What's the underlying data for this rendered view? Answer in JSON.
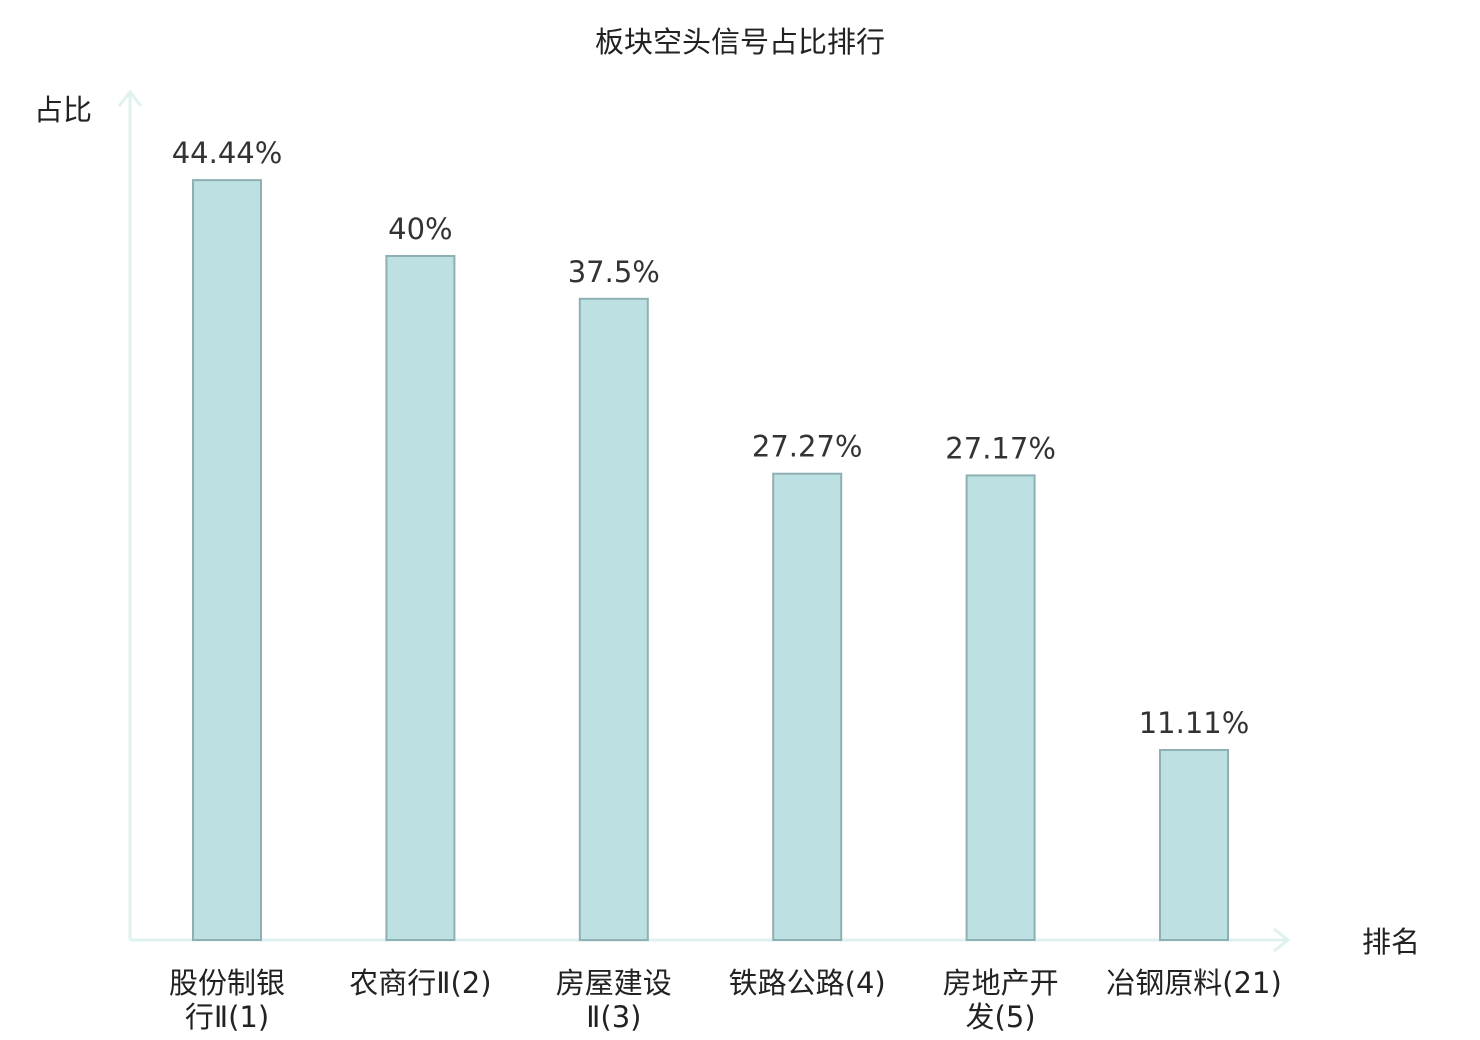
{
  "chart_data": {
    "type": "bar",
    "title": "板块空头信号占比排行",
    "ylabel": "占比",
    "xlabel": "排名",
    "ylim": [
      0,
      50
    ],
    "categories": [
      {
        "lines": [
          "股份制银",
          "行Ⅱ(1)"
        ],
        "highlight": false
      },
      {
        "lines": [
          "农商行Ⅱ(2)"
        ],
        "highlight": false
      },
      {
        "lines": [
          "房屋建设",
          "Ⅱ(3)"
        ],
        "highlight": false
      },
      {
        "lines": [
          "铁路公路(4)"
        ],
        "highlight": false
      },
      {
        "lines": [
          "房地产开",
          "发(5)"
        ],
        "highlight": false
      },
      {
        "lines": [
          "冶钢原料(21)"
        ],
        "highlight": true
      }
    ],
    "values": [
      44.44,
      40,
      37.5,
      27.27,
      27.17,
      11.11
    ],
    "data_labels": [
      "44.44%",
      "40%",
      "37.5%",
      "27.27%",
      "27.17%",
      "11.11%"
    ],
    "grid": false,
    "colors": {
      "bar_fill": "#bde0e2",
      "bar_stroke": "#8fb0b2",
      "axis": "#dff2ef",
      "highlight_text": "#e0201c",
      "text": "#222222",
      "label_text": "#333333"
    }
  }
}
